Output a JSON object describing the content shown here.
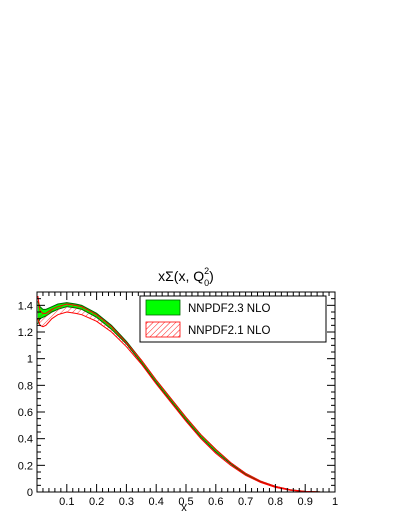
{
  "chart_data": {
    "type": "area",
    "title": {
      "prefix": "xΣ(x, Q",
      "superscript": "2",
      "subscript": "0",
      "suffix": ")"
    },
    "xlabel": "x",
    "ylabel": "",
    "xlim": [
      0.003,
      1.0
    ],
    "ylim": [
      0,
      1.5
    ],
    "x_ticks": [
      "0.1",
      "0.2",
      "0.3",
      "0.4",
      "0.5",
      "0.6",
      "0.7",
      "0.8",
      "0.9",
      "1"
    ],
    "y_ticks": [
      "0",
      "0.2",
      "0.4",
      "0.6",
      "0.8",
      "1",
      "1.2",
      "1.4"
    ],
    "grid": false,
    "legend_position": "top-right",
    "series": [
      {
        "name": "NNPDF2.3 NLO",
        "fill_color": "#00ff00",
        "edge_color": "#006600",
        "style": "solid band",
        "x": [
          0.003,
          0.01,
          0.02,
          0.03,
          0.05,
          0.07,
          0.1,
          0.13,
          0.15,
          0.2,
          0.25,
          0.3,
          0.35,
          0.4,
          0.45,
          0.5,
          0.55,
          0.6,
          0.65,
          0.7,
          0.75,
          0.8,
          0.85,
          0.9,
          0.95,
          1.0
        ],
        "upper": [
          1.43,
          1.39,
          1.37,
          1.37,
          1.39,
          1.41,
          1.42,
          1.41,
          1.4,
          1.34,
          1.25,
          1.13,
          0.99,
          0.84,
          0.7,
          0.56,
          0.43,
          0.32,
          0.22,
          0.14,
          0.082,
          0.042,
          0.017,
          0.005,
          0.001,
          0.0
        ],
        "lower": [
          1.26,
          1.3,
          1.31,
          1.32,
          1.35,
          1.37,
          1.39,
          1.38,
          1.37,
          1.31,
          1.22,
          1.11,
          0.97,
          0.82,
          0.68,
          0.54,
          0.41,
          0.3,
          0.21,
          0.13,
          0.075,
          0.037,
          0.014,
          0.003,
          0.0,
          0.0
        ]
      },
      {
        "name": "NNPDF2.1 NLO",
        "fill_color": "#ffffff",
        "edge_color": "#ff0000",
        "style": "hatched band",
        "x": [
          0.003,
          0.01,
          0.02,
          0.03,
          0.05,
          0.07,
          0.1,
          0.13,
          0.15,
          0.2,
          0.25,
          0.3,
          0.35,
          0.4,
          0.45,
          0.5,
          0.55,
          0.6,
          0.65,
          0.7,
          0.75,
          0.8,
          0.85,
          0.9,
          0.95,
          1.0
        ],
        "upper": [
          1.47,
          1.36,
          1.34,
          1.34,
          1.37,
          1.39,
          1.41,
          1.4,
          1.39,
          1.33,
          1.24,
          1.12,
          0.99,
          0.84,
          0.7,
          0.56,
          0.43,
          0.32,
          0.22,
          0.14,
          0.082,
          0.042,
          0.017,
          0.005,
          0.001,
          0.0
        ],
        "lower": [
          1.3,
          1.25,
          1.24,
          1.25,
          1.3,
          1.33,
          1.35,
          1.34,
          1.33,
          1.28,
          1.2,
          1.09,
          0.96,
          0.81,
          0.67,
          0.53,
          0.4,
          0.29,
          0.2,
          0.125,
          0.072,
          0.035,
          0.013,
          0.003,
          0.0,
          0.0
        ]
      }
    ]
  }
}
